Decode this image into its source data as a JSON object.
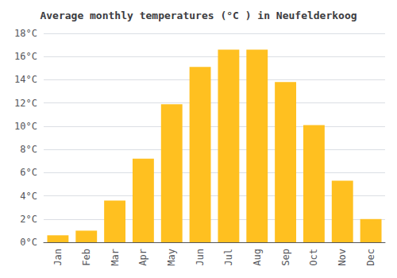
{
  "chart_data": {
    "type": "bar",
    "title": "Average monthly temperatures (°C ) in Neufelderkoog",
    "categories": [
      "Jan",
      "Feb",
      "Mar",
      "Apr",
      "May",
      "Jun",
      "Jul",
      "Aug",
      "Sep",
      "Oct",
      "Nov",
      "Dec"
    ],
    "values": [
      0.6,
      1.0,
      3.6,
      7.2,
      11.9,
      15.1,
      16.6,
      16.6,
      13.8,
      10.1,
      5.3,
      2.0
    ],
    "color": "#FFC020",
    "ylim": [
      0,
      18
    ],
    "yticks": [
      {
        "value": 0,
        "label": "0°C"
      },
      {
        "value": 2,
        "label": "2°C"
      },
      {
        "value": 4,
        "label": "4°C"
      },
      {
        "value": 6,
        "label": "6°C"
      },
      {
        "value": 8,
        "label": "8°C"
      },
      {
        "value": 10,
        "label": "10°C"
      },
      {
        "value": 12,
        "label": "12°C"
      },
      {
        "value": 14,
        "label": "14°C"
      },
      {
        "value": 16,
        "label": "16°C"
      },
      {
        "value": 18,
        "label": "18°C"
      }
    ],
    "grid": true
  }
}
